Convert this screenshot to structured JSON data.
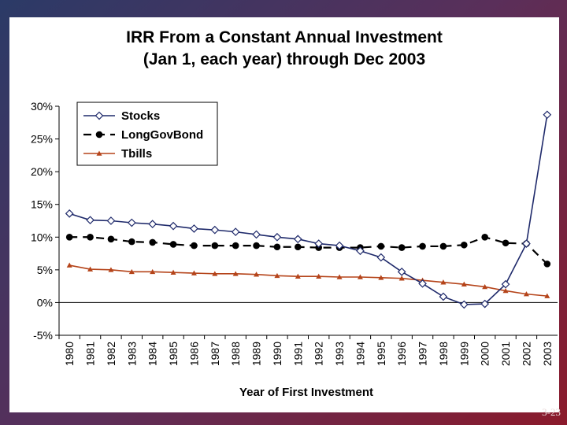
{
  "slide": {
    "page_number": "3-23"
  },
  "colors": {
    "stocks": "#1f2a6b",
    "bonds": "#000000",
    "tbills": "#b5441a"
  },
  "chart_data": {
    "type": "line",
    "title_line1": "IRR From a Constant Annual Investment",
    "title_line2": "(Jan 1, each year) through Dec 2003",
    "xlabel": "Year of First Investment",
    "ylabel": "",
    "ylim": [
      -5,
      30
    ],
    "yticks": [
      30,
      25,
      20,
      15,
      10,
      5,
      0,
      -5
    ],
    "ytick_labels": [
      "30%",
      "25%",
      "20%",
      "15%",
      "10%",
      "5%",
      "0%",
      "-5%"
    ],
    "categories": [
      "1980",
      "1981",
      "1982",
      "1983",
      "1984",
      "1985",
      "1986",
      "1987",
      "1988",
      "1989",
      "1990",
      "1991",
      "1992",
      "1993",
      "1994",
      "1995",
      "1996",
      "1997",
      "1998",
      "1999",
      "2000",
      "2001",
      "2002",
      "2003"
    ],
    "legend_position": "top-left",
    "series": [
      {
        "name": "Stocks",
        "marker": "diamond",
        "style": "solid",
        "values": [
          13.6,
          12.6,
          12.5,
          12.2,
          12.0,
          11.7,
          11.3,
          11.1,
          10.8,
          10.4,
          10.0,
          9.7,
          9.0,
          8.7,
          7.9,
          6.9,
          4.7,
          2.9,
          0.9,
          -0.3,
          -0.2,
          2.8,
          9.0,
          28.7
        ]
      },
      {
        "name": "LongGovBond",
        "marker": "circle",
        "style": "dashed",
        "values": [
          10.0,
          10.0,
          9.7,
          9.3,
          9.2,
          8.9,
          8.7,
          8.7,
          8.7,
          8.7,
          8.5,
          8.5,
          8.4,
          8.4,
          8.4,
          8.6,
          8.4,
          8.6,
          8.6,
          8.8,
          10.0,
          9.1,
          9.0,
          5.9
        ]
      },
      {
        "name": "Tbills",
        "marker": "triangle",
        "style": "solid",
        "values": [
          5.7,
          5.1,
          5.0,
          4.7,
          4.7,
          4.6,
          4.5,
          4.4,
          4.4,
          4.3,
          4.1,
          4.0,
          4.0,
          3.9,
          3.9,
          3.8,
          3.7,
          3.4,
          3.1,
          2.8,
          2.4,
          1.8,
          1.3,
          1.0
        ]
      }
    ]
  }
}
